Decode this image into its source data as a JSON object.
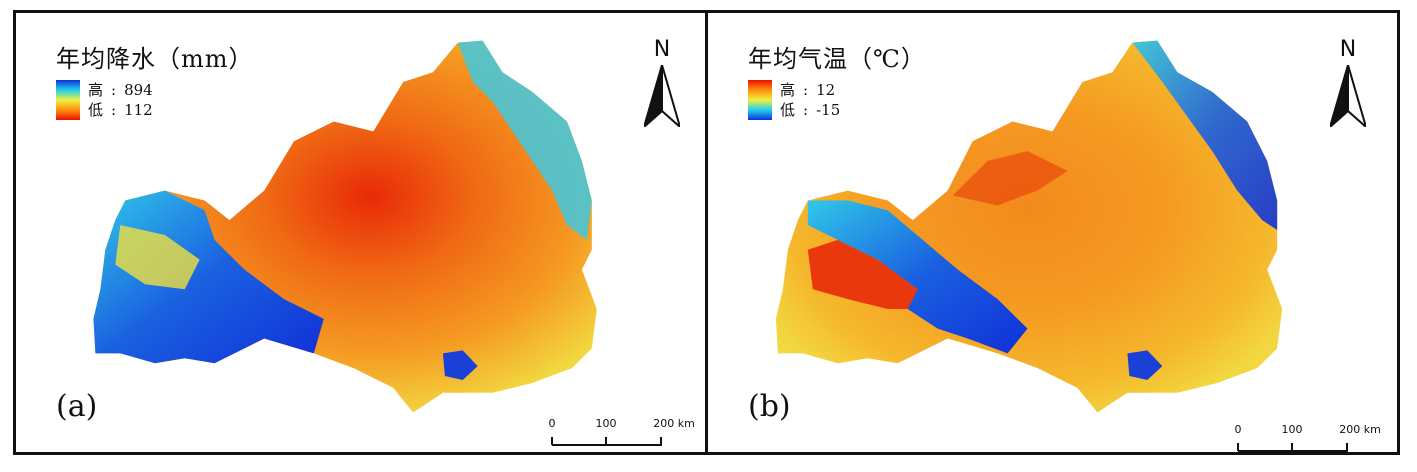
{
  "figure": {
    "panels": [
      {
        "id": "a",
        "label": "(a)",
        "legend": {
          "title": "年均降水（mm）",
          "high_label": "高",
          "high_value": "894",
          "low_label": "低",
          "low_value": "112",
          "ramp_colors_top_to_bottom": [
            "#1030d8",
            "#20d0f0",
            "#f0f040",
            "#ff9010",
            "#e81000"
          ]
        },
        "raster_palette": {
          "dominant": "#f07818",
          "core": "#e83010",
          "edge": "#f0e040",
          "mountain_cool": "#30c8e8",
          "mountain_high": "#1030d8"
        }
      },
      {
        "id": "b",
        "label": "(b)",
        "legend": {
          "title": "年均气温（℃）",
          "high_label": "高",
          "high_value": "12",
          "low_label": "低",
          "low_value": "-15",
          "ramp_colors_top_to_bottom": [
            "#e81000",
            "#ff9010",
            "#f0f040",
            "#20d0f0",
            "#1030d8"
          ]
        },
        "raster_palette": {
          "dominant": "#f49a20",
          "core": "#f07818",
          "edge": "#f0e040",
          "mountain_cool": "#30c8e8",
          "mountain_high": "#1030d8"
        }
      }
    ],
    "north_arrow": {
      "letter": "N"
    },
    "scale_bar": {
      "ticks": [
        "0",
        "100",
        "200 km"
      ]
    }
  }
}
